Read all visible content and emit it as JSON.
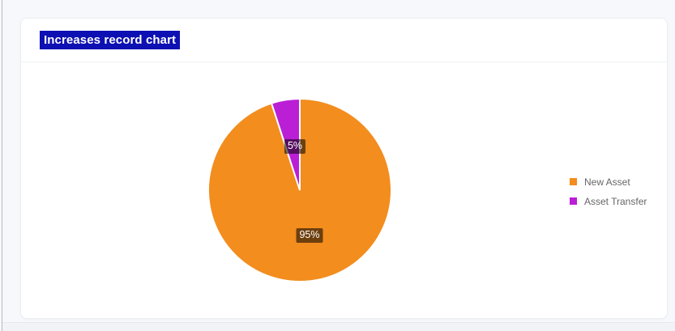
{
  "page": {
    "background_color": "#f7f8fb",
    "card_background_color": "#ffffff"
  },
  "card": {
    "title": "Increases record chart",
    "title_text_color": "#ffffff",
    "title_highlight_color": "#0d10b2"
  },
  "chart_data": {
    "type": "pie",
    "title": "Increases record chart",
    "labels": [
      "New Asset",
      "Asset Transfer"
    ],
    "values": [
      95,
      5
    ],
    "value_labels": [
      "95%",
      "5%"
    ],
    "colors": [
      "#f28d1e",
      "#bb1fd5"
    ],
    "slice_border_color": "#ffffff",
    "slice_border_width": 2,
    "start_angle_deg": -90,
    "direction": "clockwise",
    "data_label_background": "rgba(0,0,0,0.55)",
    "data_label_text_color": "#ffffff",
    "legend_position": "right",
    "legend_text_color": "#666666"
  }
}
